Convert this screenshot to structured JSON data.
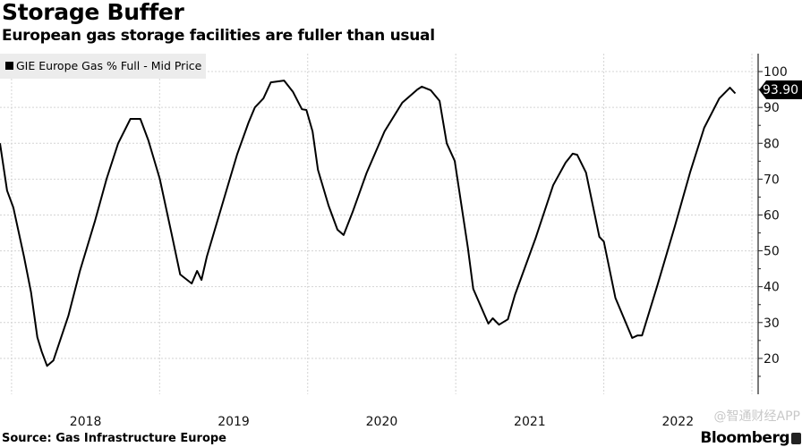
{
  "header": {
    "title": "Storage Buffer",
    "subtitle": "European gas storage facilities are fuller than usual"
  },
  "footer": {
    "source": "Source: Gas Infrastructure Europe",
    "brand": "Bloomberg",
    "watermark": "@智通财经APP"
  },
  "chart_data": {
    "type": "line",
    "title": "Storage Buffer",
    "subtitle": "European gas storage facilities are fuller than usual",
    "xlabel": "",
    "ylabel": "",
    "legend": {
      "label": "GIE Europe Gas % Full - Mid Price",
      "placement": "top-left"
    },
    "last_value_label": "93.90",
    "ylim": [
      10,
      105
    ],
    "xlim": [
      2017.922,
      2023.0
    ],
    "grid": true,
    "y_ticks": [
      20,
      30,
      40,
      50,
      60,
      70,
      80,
      90,
      100
    ],
    "x_ticks": [
      {
        "label": "2018",
        "at": 2018.5
      },
      {
        "label": "2019",
        "at": 2019.5
      },
      {
        "label": "2020",
        "at": 2020.5
      },
      {
        "label": "2021",
        "at": 2021.5
      },
      {
        "label": "2022",
        "at": 2022.5
      }
    ],
    "series": [
      {
        "name": "GIE Europe Gas % Full - Mid Price",
        "color": "#000000",
        "x": [
          2017.922,
          2017.97,
          2018.012,
          2018.084,
          2018.132,
          2018.174,
          2018.204,
          2018.24,
          2018.282,
          2018.384,
          2018.462,
          2018.564,
          2018.642,
          2018.72,
          2018.803,
          2018.87,
          2018.924,
          2019.001,
          2019.079,
          2019.139,
          2019.217,
          2019.253,
          2019.283,
          2019.319,
          2019.439,
          2019.523,
          2019.601,
          2019.643,
          2019.701,
          2019.751,
          2019.841,
          2019.901,
          2019.961,
          2019.991,
          2020.033,
          2020.069,
          2020.141,
          2020.201,
          2020.243,
          2020.303,
          2020.399,
          2020.519,
          2020.639,
          2020.741,
          2020.771,
          2020.831,
          2020.891,
          2020.939,
          2020.993,
          2021.082,
          2021.118,
          2021.22,
          2021.25,
          2021.292,
          2021.352,
          2021.4,
          2021.538,
          2021.658,
          2021.742,
          2021.79,
          2021.82,
          2021.88,
          2021.97,
          2022.0,
          2022.078,
          2022.192,
          2022.228,
          2022.258,
          2022.36,
          2022.48,
          2022.582,
          2022.678,
          2022.78,
          2022.852,
          2022.888
        ],
        "values": [
          80.0,
          66.8,
          62.1,
          48.4,
          38.4,
          25.9,
          21.9,
          17.9,
          19.4,
          31.9,
          44.4,
          58.4,
          70.1,
          80.0,
          86.8,
          86.8,
          80.8,
          70.1,
          55.1,
          43.4,
          40.9,
          44.4,
          41.9,
          48.4,
          65.1,
          76.8,
          85.8,
          90.0,
          92.5,
          97.0,
          97.5,
          94.3,
          89.5,
          89.3,
          83.3,
          72.6,
          62.6,
          55.9,
          54.4,
          60.8,
          71.8,
          83.3,
          91.3,
          95.0,
          95.8,
          94.8,
          91.8,
          80.0,
          75.1,
          50.9,
          39.4,
          29.7,
          31.2,
          29.4,
          30.9,
          37.7,
          53.4,
          68.3,
          74.6,
          77.1,
          76.8,
          71.8,
          53.9,
          52.6,
          36.9,
          25.7,
          26.4,
          26.4,
          40.1,
          56.9,
          71.8,
          84.3,
          92.5,
          95.5,
          93.9
        ]
      }
    ]
  }
}
